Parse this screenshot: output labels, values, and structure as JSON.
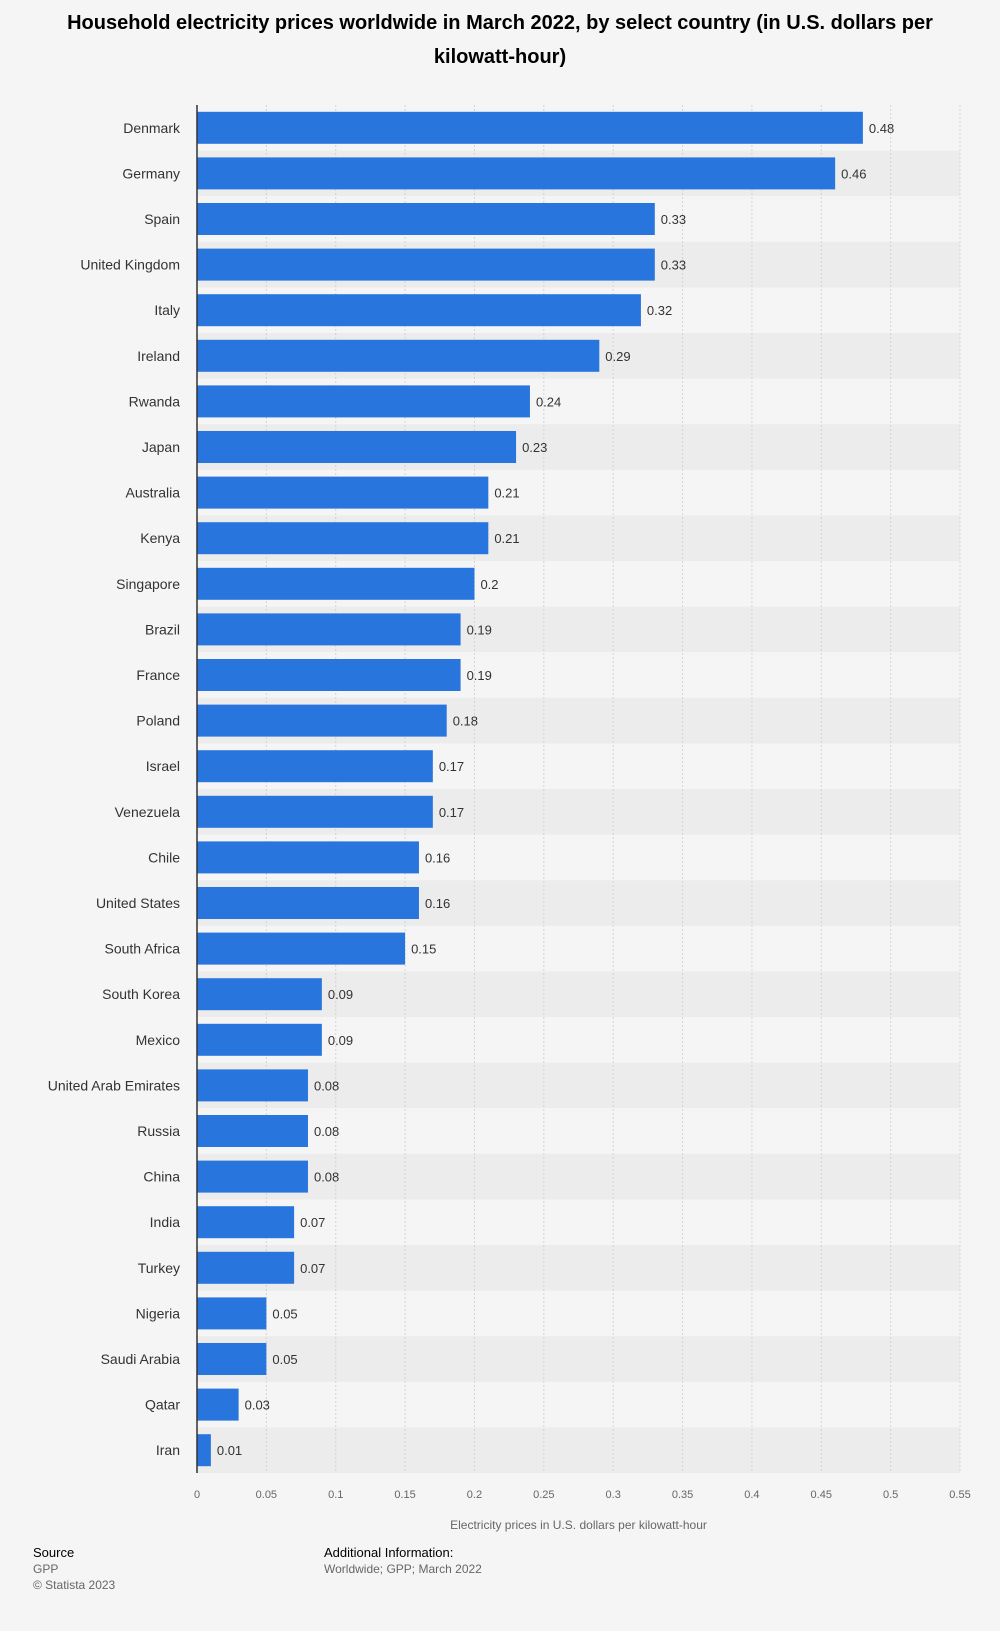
{
  "chart_data": {
    "type": "bar",
    "orientation": "horizontal",
    "title": "Household electricity prices worldwide in March 2022, by select country (in U.S. dollars per kilowatt-hour)",
    "xlabel": "Electricity prices in U.S. dollars per kilowatt-hour",
    "ylabel": "",
    "xlim": [
      0,
      0.55
    ],
    "ticks": [
      "0",
      "0.05",
      "0.1",
      "0.15",
      "0.2",
      "0.25",
      "0.3",
      "0.35",
      "0.4",
      "0.45",
      "0.5",
      "0.55"
    ],
    "categories": [
      "Denmark",
      "Germany",
      "Spain",
      "United Kingdom",
      "Italy",
      "Ireland",
      "Rwanda",
      "Japan",
      "Australia",
      "Kenya",
      "Singapore",
      "Brazil",
      "France",
      "Poland",
      "Israel",
      "Venezuela",
      "Chile",
      "United States",
      "South Africa",
      "South Korea",
      "Mexico",
      "United Arab Emirates",
      "Russia",
      "China",
      "India",
      "Turkey",
      "Nigeria",
      "Saudi Arabia",
      "Qatar",
      "Iran"
    ],
    "values": [
      0.48,
      0.46,
      0.33,
      0.33,
      0.32,
      0.29,
      0.24,
      0.23,
      0.21,
      0.21,
      0.2,
      0.19,
      0.19,
      0.18,
      0.17,
      0.17,
      0.16,
      0.16,
      0.15,
      0.09,
      0.09,
      0.08,
      0.08,
      0.08,
      0.07,
      0.07,
      0.05,
      0.05,
      0.03,
      0.01
    ],
    "value_labels": [
      "0.48",
      "0.46",
      "0.33",
      "0.33",
      "0.32",
      "0.29",
      "0.24",
      "0.23",
      "0.21",
      "0.21",
      "0.2",
      "0.19",
      "0.19",
      "0.18",
      "0.17",
      "0.17",
      "0.16",
      "0.16",
      "0.15",
      "0.09",
      "0.09",
      "0.08",
      "0.08",
      "0.08",
      "0.07",
      "0.07",
      "0.05",
      "0.05",
      "0.03",
      "0.01"
    ],
    "grid": true,
    "colors": {
      "bar": "#2876dd",
      "stripe": "#ececec",
      "grid": "#d4d4d4",
      "axis": "#333333"
    }
  },
  "footer": {
    "source_label": "Source",
    "source_value": "GPP",
    "copyright": "© Statista 2023",
    "additional_label": "Additional Information:",
    "additional_value": "Worldwide; GPP; March 2022"
  }
}
